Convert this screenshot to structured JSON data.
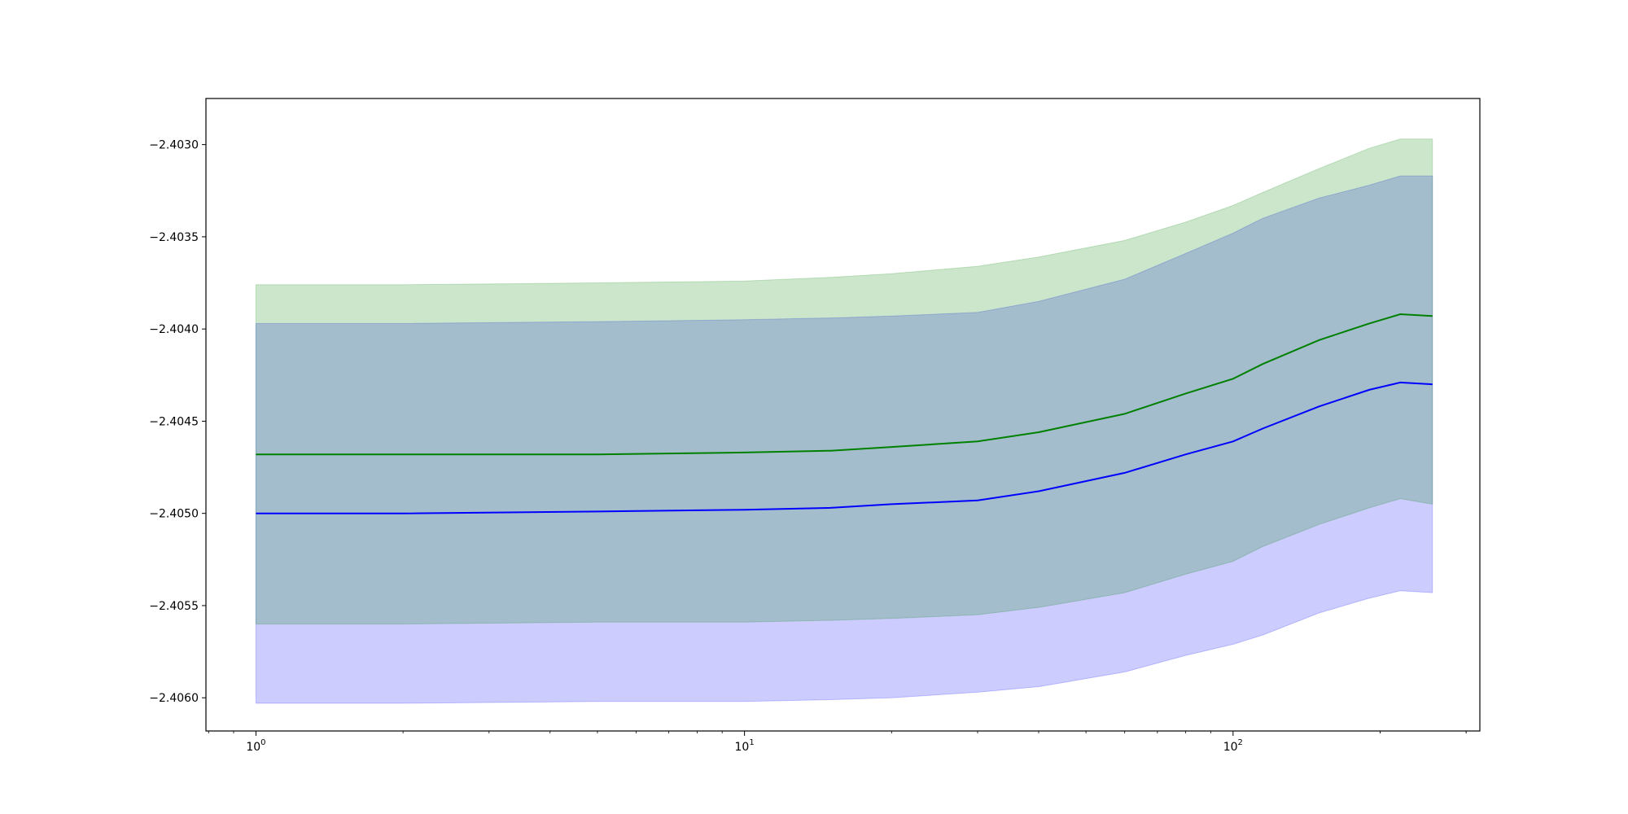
{
  "chart_data": {
    "type": "line",
    "title": "",
    "xlabel": "",
    "ylabel": "",
    "xscale": "log",
    "xlim": [
      0.79,
      320
    ],
    "ylim": [
      -2.40618,
      -2.40275
    ],
    "grid": false,
    "legend": "none",
    "x_ticks": [
      {
        "value": 1,
        "base": "10",
        "exp": "0"
      },
      {
        "value": 10,
        "base": "10",
        "exp": "1"
      },
      {
        "value": 100,
        "base": "10",
        "exp": "2"
      }
    ],
    "y_ticks": [
      {
        "value": -2.406,
        "label": "−2.4060"
      },
      {
        "value": -2.4055,
        "label": "−2.4055"
      },
      {
        "value": -2.405,
        "label": "−2.4050"
      },
      {
        "value": -2.4045,
        "label": "−2.4045"
      },
      {
        "value": -2.404,
        "label": "−2.4040"
      },
      {
        "value": -2.4035,
        "label": "−2.4035"
      },
      {
        "value": -2.403,
        "label": "−2.4030"
      }
    ],
    "series": [
      {
        "color": "#0000ff",
        "band_color": "#0000ff",
        "x": [
          1,
          2,
          5,
          10,
          15,
          20,
          30,
          40,
          60,
          80,
          100,
          115,
          150,
          190,
          220,
          256
        ],
        "y": [
          -2.405,
          -2.405,
          -2.40499,
          -2.40498,
          -2.40497,
          -2.40495,
          -2.40493,
          -2.40488,
          -2.40478,
          -2.40468,
          -2.40461,
          -2.40454,
          -2.40442,
          -2.40433,
          -2.40429,
          -2.4043
        ],
        "upper": [
          -2.40397,
          -2.40397,
          -2.40396,
          -2.40395,
          -2.40394,
          -2.40393,
          -2.40391,
          -2.40385,
          -2.40373,
          -2.40359,
          -2.40348,
          -2.4034,
          -2.40329,
          -2.40322,
          -2.40317,
          -2.40317
        ],
        "lower": [
          -2.40603,
          -2.40603,
          -2.40602,
          -2.40602,
          -2.40601,
          -2.406,
          -2.40597,
          -2.40594,
          -2.40586,
          -2.40577,
          -2.40571,
          -2.40566,
          -2.40554,
          -2.40546,
          -2.40542,
          -2.40543
        ]
      },
      {
        "color": "#008000",
        "band_color": "#008000",
        "x": [
          1,
          2,
          5,
          10,
          15,
          20,
          30,
          40,
          60,
          80,
          100,
          115,
          150,
          190,
          220,
          256
        ],
        "y": [
          -2.40468,
          -2.40468,
          -2.40468,
          -2.40467,
          -2.40466,
          -2.40464,
          -2.40461,
          -2.40456,
          -2.40446,
          -2.40435,
          -2.40427,
          -2.40419,
          -2.40406,
          -2.40397,
          -2.40392,
          -2.40393
        ],
        "upper": [
          -2.40376,
          -2.40376,
          -2.40375,
          -2.40374,
          -2.40372,
          -2.4037,
          -2.40366,
          -2.40361,
          -2.40352,
          -2.40342,
          -2.40333,
          -2.40326,
          -2.40313,
          -2.40302,
          -2.40297,
          -2.40297
        ],
        "lower": [
          -2.4056,
          -2.4056,
          -2.40559,
          -2.40559,
          -2.40558,
          -2.40557,
          -2.40555,
          -2.40551,
          -2.40543,
          -2.40533,
          -2.40526,
          -2.40518,
          -2.40506,
          -2.40497,
          -2.40492,
          -2.40495
        ]
      }
    ]
  }
}
